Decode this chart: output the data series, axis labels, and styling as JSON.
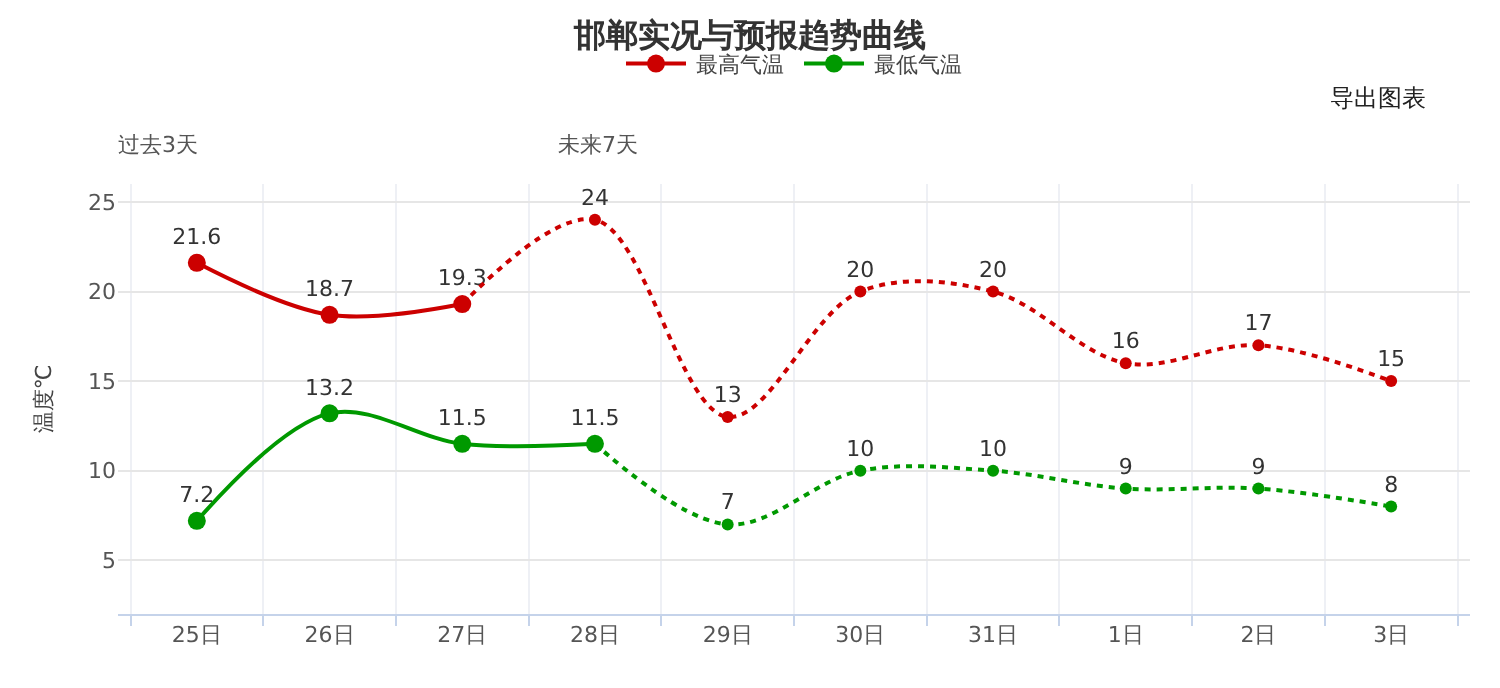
{
  "chart_data": {
    "type": "line",
    "title": "邯郸实况与预报趋势曲线",
    "ylabel": "温度℃",
    "annotations": [
      "过去3天",
      "未来7天",
      "导出图表"
    ],
    "categories": [
      "25日",
      "26日",
      "27日",
      "28日",
      "29日",
      "30日",
      "31日",
      "1日",
      "2日",
      "3日"
    ],
    "series": [
      {
        "name": "最高气温",
        "color": "#cc0000",
        "line_style": "solid",
        "values": [
          21.6,
          18.7,
          19.3,
          null,
          null,
          null,
          null,
          null,
          null,
          null
        ],
        "value_labels": [
          "21.6",
          "18.7",
          "19.3",
          null,
          null,
          null,
          null,
          null,
          null,
          null
        ]
      },
      {
        "color": "#cc0000",
        "line_style": "dotted",
        "values": [
          null,
          null,
          19.3,
          24,
          13,
          20,
          20,
          16,
          17,
          15
        ],
        "value_labels": [
          null,
          null,
          null,
          "24",
          "13",
          "20",
          "20",
          "16",
          "17",
          "15"
        ]
      },
      {
        "name": "最低气温",
        "color": "#009900",
        "line_style": "solid",
        "values": [
          7.2,
          13.2,
          11.5,
          11.5,
          null,
          null,
          null,
          null,
          null,
          null
        ],
        "value_labels": [
          "7.2",
          "13.2",
          "11.5",
          "11.5",
          null,
          null,
          null,
          null,
          null,
          null
        ]
      },
      {
        "color": "#009900",
        "line_style": "dotted",
        "values": [
          null,
          null,
          null,
          11.5,
          7,
          10,
          10,
          9,
          9,
          8
        ],
        "value_labels": [
          null,
          null,
          null,
          null,
          "7",
          "10",
          "10",
          "9",
          "9",
          "8"
        ]
      }
    ],
    "ylim": [
      2,
      26
    ],
    "yticks": [
      5,
      10,
      15,
      20,
      25
    ],
    "grid": true,
    "legend": "top",
    "marker": "circle"
  }
}
